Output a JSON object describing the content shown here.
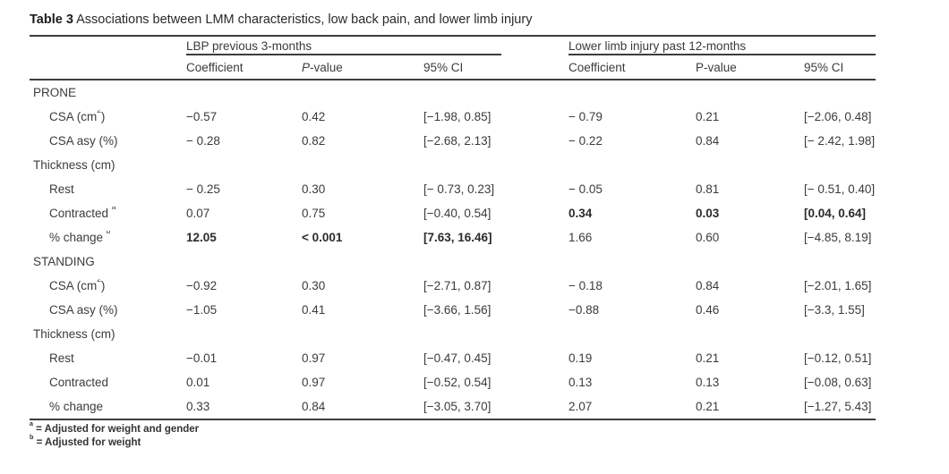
{
  "title": {
    "label": "Table 3",
    "text": "Associations between LMM characteristics, low back pain, and lower limb injury"
  },
  "table": {
    "groups": [
      {
        "label": "LBP previous 3-months"
      },
      {
        "label": "Lower limb injury past 12-months"
      }
    ],
    "columns": [
      {
        "text": "Coefficient"
      },
      {
        "italic": "P",
        "text": "-value"
      },
      {
        "text": "95% CI"
      },
      {
        "text": "Coefficient"
      },
      {
        "text": "P-value"
      },
      {
        "text": "95% CI"
      }
    ],
    "rows": [
      {
        "section": true,
        "label": "PRONE"
      },
      {
        "indent": true,
        "label": "CSA (cm",
        "sup": "2",
        "post": ")",
        "cells": [
          "−0.57",
          "0.42",
          "[−1.98, 0.85]",
          "− 0.79",
          "0.21",
          "[−2.06, 0.48]"
        ]
      },
      {
        "indent": true,
        "label": "CSA asy (%)",
        "cells": [
          "− 0.28",
          "0.82",
          "[−2.68, 2.13]",
          "− 0.22",
          "0.84",
          "[− 2.42, 1.98]"
        ]
      },
      {
        "section": true,
        "label": "Thickness (cm)"
      },
      {
        "indent": true,
        "label": "Rest",
        "cells": [
          "− 0.25",
          "0.30",
          "[− 0.73, 0.23]",
          "− 0.05",
          "0.81",
          "[− 0.51, 0.40]"
        ]
      },
      {
        "indent": true,
        "label": "Contracted ",
        "sup": "a",
        "cells": [
          "0.07",
          "0.75",
          "[−0.40, 0.54]",
          "0.34",
          "0.03",
          "[0.04, 0.64]"
        ],
        "bold": [
          3,
          4,
          5
        ]
      },
      {
        "indent": true,
        "label": "% change ",
        "sup": "b",
        "cells": [
          "12.05",
          "< 0.001",
          "[7.63, 16.46]",
          "1.66",
          "0.60",
          "[−4.85, 8.19]"
        ],
        "bold": [
          0,
          1,
          2
        ]
      },
      {
        "section": true,
        "label": "STANDING"
      },
      {
        "indent": true,
        "label": "CSA (cm",
        "sup": "2",
        "post": ")",
        "cells": [
          "−0.92",
          "0.30",
          "[−2.71, 0.87]",
          "− 0.18",
          "0.84",
          "[−2.01, 1.65]"
        ]
      },
      {
        "indent": true,
        "label": "CSA asy (%)",
        "cells": [
          "−1.05",
          "0.41",
          "[−3.66, 1.56]",
          "−0.88",
          "0.46",
          "[−3.3, 1.55]"
        ]
      },
      {
        "section": true,
        "label": "Thickness (cm)"
      },
      {
        "indent": true,
        "label": "Rest",
        "cells": [
          "−0.01",
          "0.97",
          "[−0.47, 0.45]",
          "0.19",
          "0.21",
          "[−0.12, 0.51]"
        ]
      },
      {
        "indent": true,
        "label": "Contracted",
        "cells": [
          "0.01",
          "0.97",
          "[−0.52, 0.54]",
          "0.13",
          "0.13",
          "[−0.08, 0.63]"
        ]
      },
      {
        "indent": true,
        "label": "% change",
        "cells": [
          "0.33",
          "0.84",
          "[−3.05, 3.70]",
          "2.07",
          "0.21",
          "[−1.27, 5.43]"
        ]
      }
    ]
  },
  "footnotes": [
    {
      "sup": "a",
      "text": "= Adjusted for weight and gender"
    },
    {
      "sup": "b",
      "text": "= Adjusted for weight"
    }
  ]
}
